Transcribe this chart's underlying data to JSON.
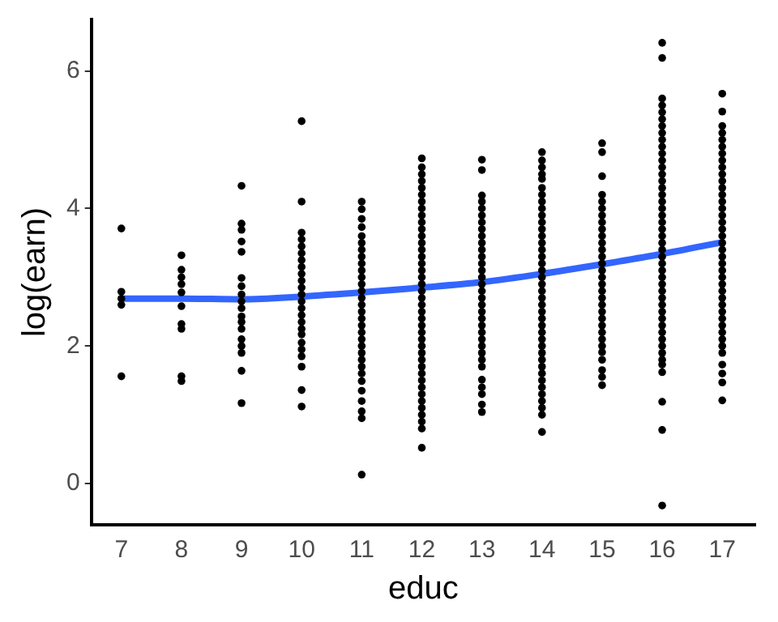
{
  "chart_data": {
    "type": "scatter",
    "xlabel": "educ",
    "ylabel": "log(earn)",
    "xlim": [
      6.5,
      17.55
    ],
    "ylim": [
      -0.6,
      6.75
    ],
    "xticks": [
      7,
      8,
      9,
      10,
      11,
      12,
      13,
      14,
      15,
      16,
      17
    ],
    "yticks": [
      0,
      2,
      4,
      6
    ],
    "grid": false,
    "legend": false,
    "marker": "circle",
    "series": [
      {
        "color": "#000000",
        "x": [
          7,
          7,
          7,
          7,
          7
        ],
        "values": [
          3.71,
          2.79,
          2.69,
          2.6,
          1.56
        ]
      },
      {
        "color": "#000000",
        "x": [
          8,
          8,
          8,
          8,
          8,
          8,
          8,
          8,
          8,
          8
        ],
        "values": [
          3.32,
          3.11,
          3.0,
          2.9,
          2.78,
          2.58,
          2.32,
          2.25,
          1.56,
          1.49
        ]
      },
      {
        "color": "#000000",
        "x": [
          9,
          9,
          9,
          9,
          9,
          9,
          9,
          9,
          9,
          9,
          9,
          9,
          9,
          9,
          9,
          9,
          9,
          9
        ],
        "values": [
          4.33,
          3.78,
          3.69,
          3.52,
          3.37,
          2.99,
          2.87,
          2.75,
          2.65,
          2.55,
          2.43,
          2.35,
          2.25,
          2.1,
          2.0,
          1.9,
          1.64,
          1.17
        ]
      },
      {
        "color": "#000000",
        "x": [
          10,
          10,
          10,
          10,
          10,
          10,
          10,
          10,
          10,
          10,
          10,
          10,
          10,
          10,
          10,
          10,
          10,
          10,
          10,
          10,
          10,
          10,
          10,
          10
        ],
        "values": [
          5.27,
          4.1,
          3.65,
          3.55,
          3.45,
          3.35,
          3.25,
          3.15,
          3.05,
          2.95,
          2.85,
          2.75,
          2.65,
          2.55,
          2.45,
          2.35,
          2.25,
          2.17,
          2.05,
          1.95,
          1.85,
          1.7,
          1.36,
          1.12
        ]
      },
      {
        "color": "#000000",
        "x": [
          11,
          11,
          11,
          11,
          11,
          11,
          11,
          11,
          11,
          11,
          11,
          11,
          11,
          11,
          11,
          11,
          11,
          11,
          11,
          11,
          11,
          11,
          11,
          11,
          11,
          11,
          11,
          11,
          11,
          11,
          11
        ],
        "values": [
          4.1,
          3.99,
          3.85,
          3.73,
          3.6,
          3.5,
          3.4,
          3.3,
          3.2,
          3.1,
          3.0,
          2.9,
          2.8,
          2.7,
          2.6,
          2.5,
          2.4,
          2.3,
          2.2,
          2.1,
          2.0,
          1.9,
          1.8,
          1.7,
          1.6,
          1.49,
          1.35,
          1.2,
          1.05,
          0.95,
          0.13
        ]
      },
      {
        "color": "#000000",
        "x": [
          12,
          12,
          12,
          12,
          12,
          12,
          12,
          12,
          12,
          12,
          12,
          12,
          12,
          12,
          12,
          12,
          12,
          12,
          12,
          12,
          12,
          12,
          12,
          12,
          12,
          12,
          12,
          12,
          12,
          12,
          12,
          12,
          12,
          12,
          12,
          12,
          12,
          12,
          12,
          12,
          12
        ],
        "values": [
          4.73,
          4.6,
          4.5,
          4.4,
          4.3,
          4.2,
          4.1,
          4.0,
          3.9,
          3.8,
          3.7,
          3.6,
          3.5,
          3.4,
          3.3,
          3.2,
          3.1,
          3.0,
          2.9,
          2.8,
          2.7,
          2.6,
          2.5,
          2.4,
          2.3,
          2.2,
          2.1,
          2.0,
          1.9,
          1.8,
          1.7,
          1.6,
          1.5,
          1.4,
          1.3,
          1.2,
          1.1,
          1.0,
          0.9,
          0.8,
          0.52
        ]
      },
      {
        "color": "#000000",
        "x": [
          13,
          13,
          13,
          13,
          13,
          13,
          13,
          13,
          13,
          13,
          13,
          13,
          13,
          13,
          13,
          13,
          13,
          13,
          13,
          13,
          13,
          13,
          13,
          13,
          13,
          13,
          13,
          13,
          13,
          13,
          13,
          13,
          13
        ],
        "values": [
          4.71,
          4.56,
          4.19,
          4.1,
          4.0,
          3.9,
          3.8,
          3.7,
          3.6,
          3.5,
          3.4,
          3.3,
          3.2,
          3.1,
          3.0,
          2.9,
          2.8,
          2.7,
          2.6,
          2.5,
          2.4,
          2.3,
          2.2,
          2.1,
          2.0,
          1.9,
          1.8,
          1.7,
          1.51,
          1.4,
          1.3,
          1.15,
          1.04
        ]
      },
      {
        "color": "#000000",
        "x": [
          14,
          14,
          14,
          14,
          14,
          14,
          14,
          14,
          14,
          14,
          14,
          14,
          14,
          14,
          14,
          14,
          14,
          14,
          14,
          14,
          14,
          14,
          14,
          14,
          14,
          14,
          14,
          14,
          14,
          14,
          14,
          14,
          14,
          14,
          14,
          14,
          14,
          14,
          14,
          14
        ],
        "values": [
          4.82,
          4.7,
          4.6,
          4.5,
          4.43,
          4.3,
          4.2,
          4.1,
          4.0,
          3.9,
          3.8,
          3.7,
          3.6,
          3.5,
          3.4,
          3.3,
          3.2,
          3.1,
          3.0,
          2.9,
          2.8,
          2.7,
          2.6,
          2.5,
          2.4,
          2.3,
          2.2,
          2.1,
          2.0,
          1.9,
          1.8,
          1.7,
          1.6,
          1.5,
          1.4,
          1.3,
          1.2,
          1.1,
          1.0,
          0.75
        ]
      },
      {
        "color": "#000000",
        "x": [
          15,
          15,
          15,
          15,
          15,
          15,
          15,
          15,
          15,
          15,
          15,
          15,
          15,
          15,
          15,
          15,
          15,
          15,
          15,
          15,
          15,
          15,
          15,
          15,
          15,
          15,
          15,
          15,
          15,
          15,
          15
        ],
        "values": [
          4.95,
          4.82,
          4.47,
          4.2,
          4.1,
          4.0,
          3.9,
          3.8,
          3.7,
          3.6,
          3.5,
          3.4,
          3.3,
          3.2,
          3.1,
          3.0,
          2.9,
          2.8,
          2.7,
          2.6,
          2.5,
          2.4,
          2.3,
          2.2,
          2.1,
          2.0,
          1.91,
          1.8,
          1.65,
          1.55,
          1.43
        ]
      },
      {
        "color": "#000000",
        "x": [
          16,
          16,
          16,
          16,
          16,
          16,
          16,
          16,
          16,
          16,
          16,
          16,
          16,
          16,
          16,
          16,
          16,
          16,
          16,
          16,
          16,
          16,
          16,
          16,
          16,
          16,
          16,
          16,
          16,
          16,
          16,
          16,
          16,
          16,
          16,
          16,
          16,
          16,
          16,
          16,
          16,
          16,
          16,
          16,
          16,
          16
        ],
        "values": [
          6.41,
          6.19,
          5.6,
          5.5,
          5.4,
          5.3,
          5.2,
          5.1,
          5.0,
          4.9,
          4.8,
          4.7,
          4.6,
          4.5,
          4.4,
          4.3,
          4.2,
          4.1,
          4.0,
          3.9,
          3.8,
          3.7,
          3.6,
          3.5,
          3.4,
          3.3,
          3.2,
          3.1,
          3.0,
          2.9,
          2.8,
          2.7,
          2.6,
          2.5,
          2.4,
          2.3,
          2.2,
          2.1,
          2.0,
          1.9,
          1.8,
          1.73,
          1.62,
          1.19,
          0.78,
          -0.32
        ]
      },
      {
        "color": "#000000",
        "x": [
          17,
          17,
          17,
          17,
          17,
          17,
          17,
          17,
          17,
          17,
          17,
          17,
          17,
          17,
          17,
          17,
          17,
          17,
          17,
          17,
          17,
          17,
          17,
          17,
          17,
          17,
          17,
          17,
          17,
          17,
          17,
          17,
          17,
          17,
          17,
          17,
          17,
          17,
          17,
          17
        ],
        "values": [
          5.67,
          5.41,
          5.2,
          5.1,
          5.0,
          4.9,
          4.8,
          4.7,
          4.6,
          4.5,
          4.4,
          4.3,
          4.2,
          4.1,
          4.0,
          3.9,
          3.8,
          3.7,
          3.6,
          3.5,
          3.4,
          3.3,
          3.2,
          3.1,
          3.0,
          2.9,
          2.8,
          2.7,
          2.6,
          2.5,
          2.4,
          2.3,
          2.2,
          2.1,
          2.0,
          1.9,
          1.73,
          1.6,
          1.47,
          1.21
        ]
      },
      {
        "type": "line",
        "color": "#3366ff",
        "marker": "none",
        "x": [
          7,
          8,
          9,
          10,
          11,
          12,
          13,
          14,
          15,
          16,
          17
        ],
        "values": [
          2.69,
          2.69,
          2.68,
          2.72,
          2.78,
          2.85,
          2.93,
          3.05,
          3.19,
          3.34,
          3.51
        ]
      }
    ]
  }
}
